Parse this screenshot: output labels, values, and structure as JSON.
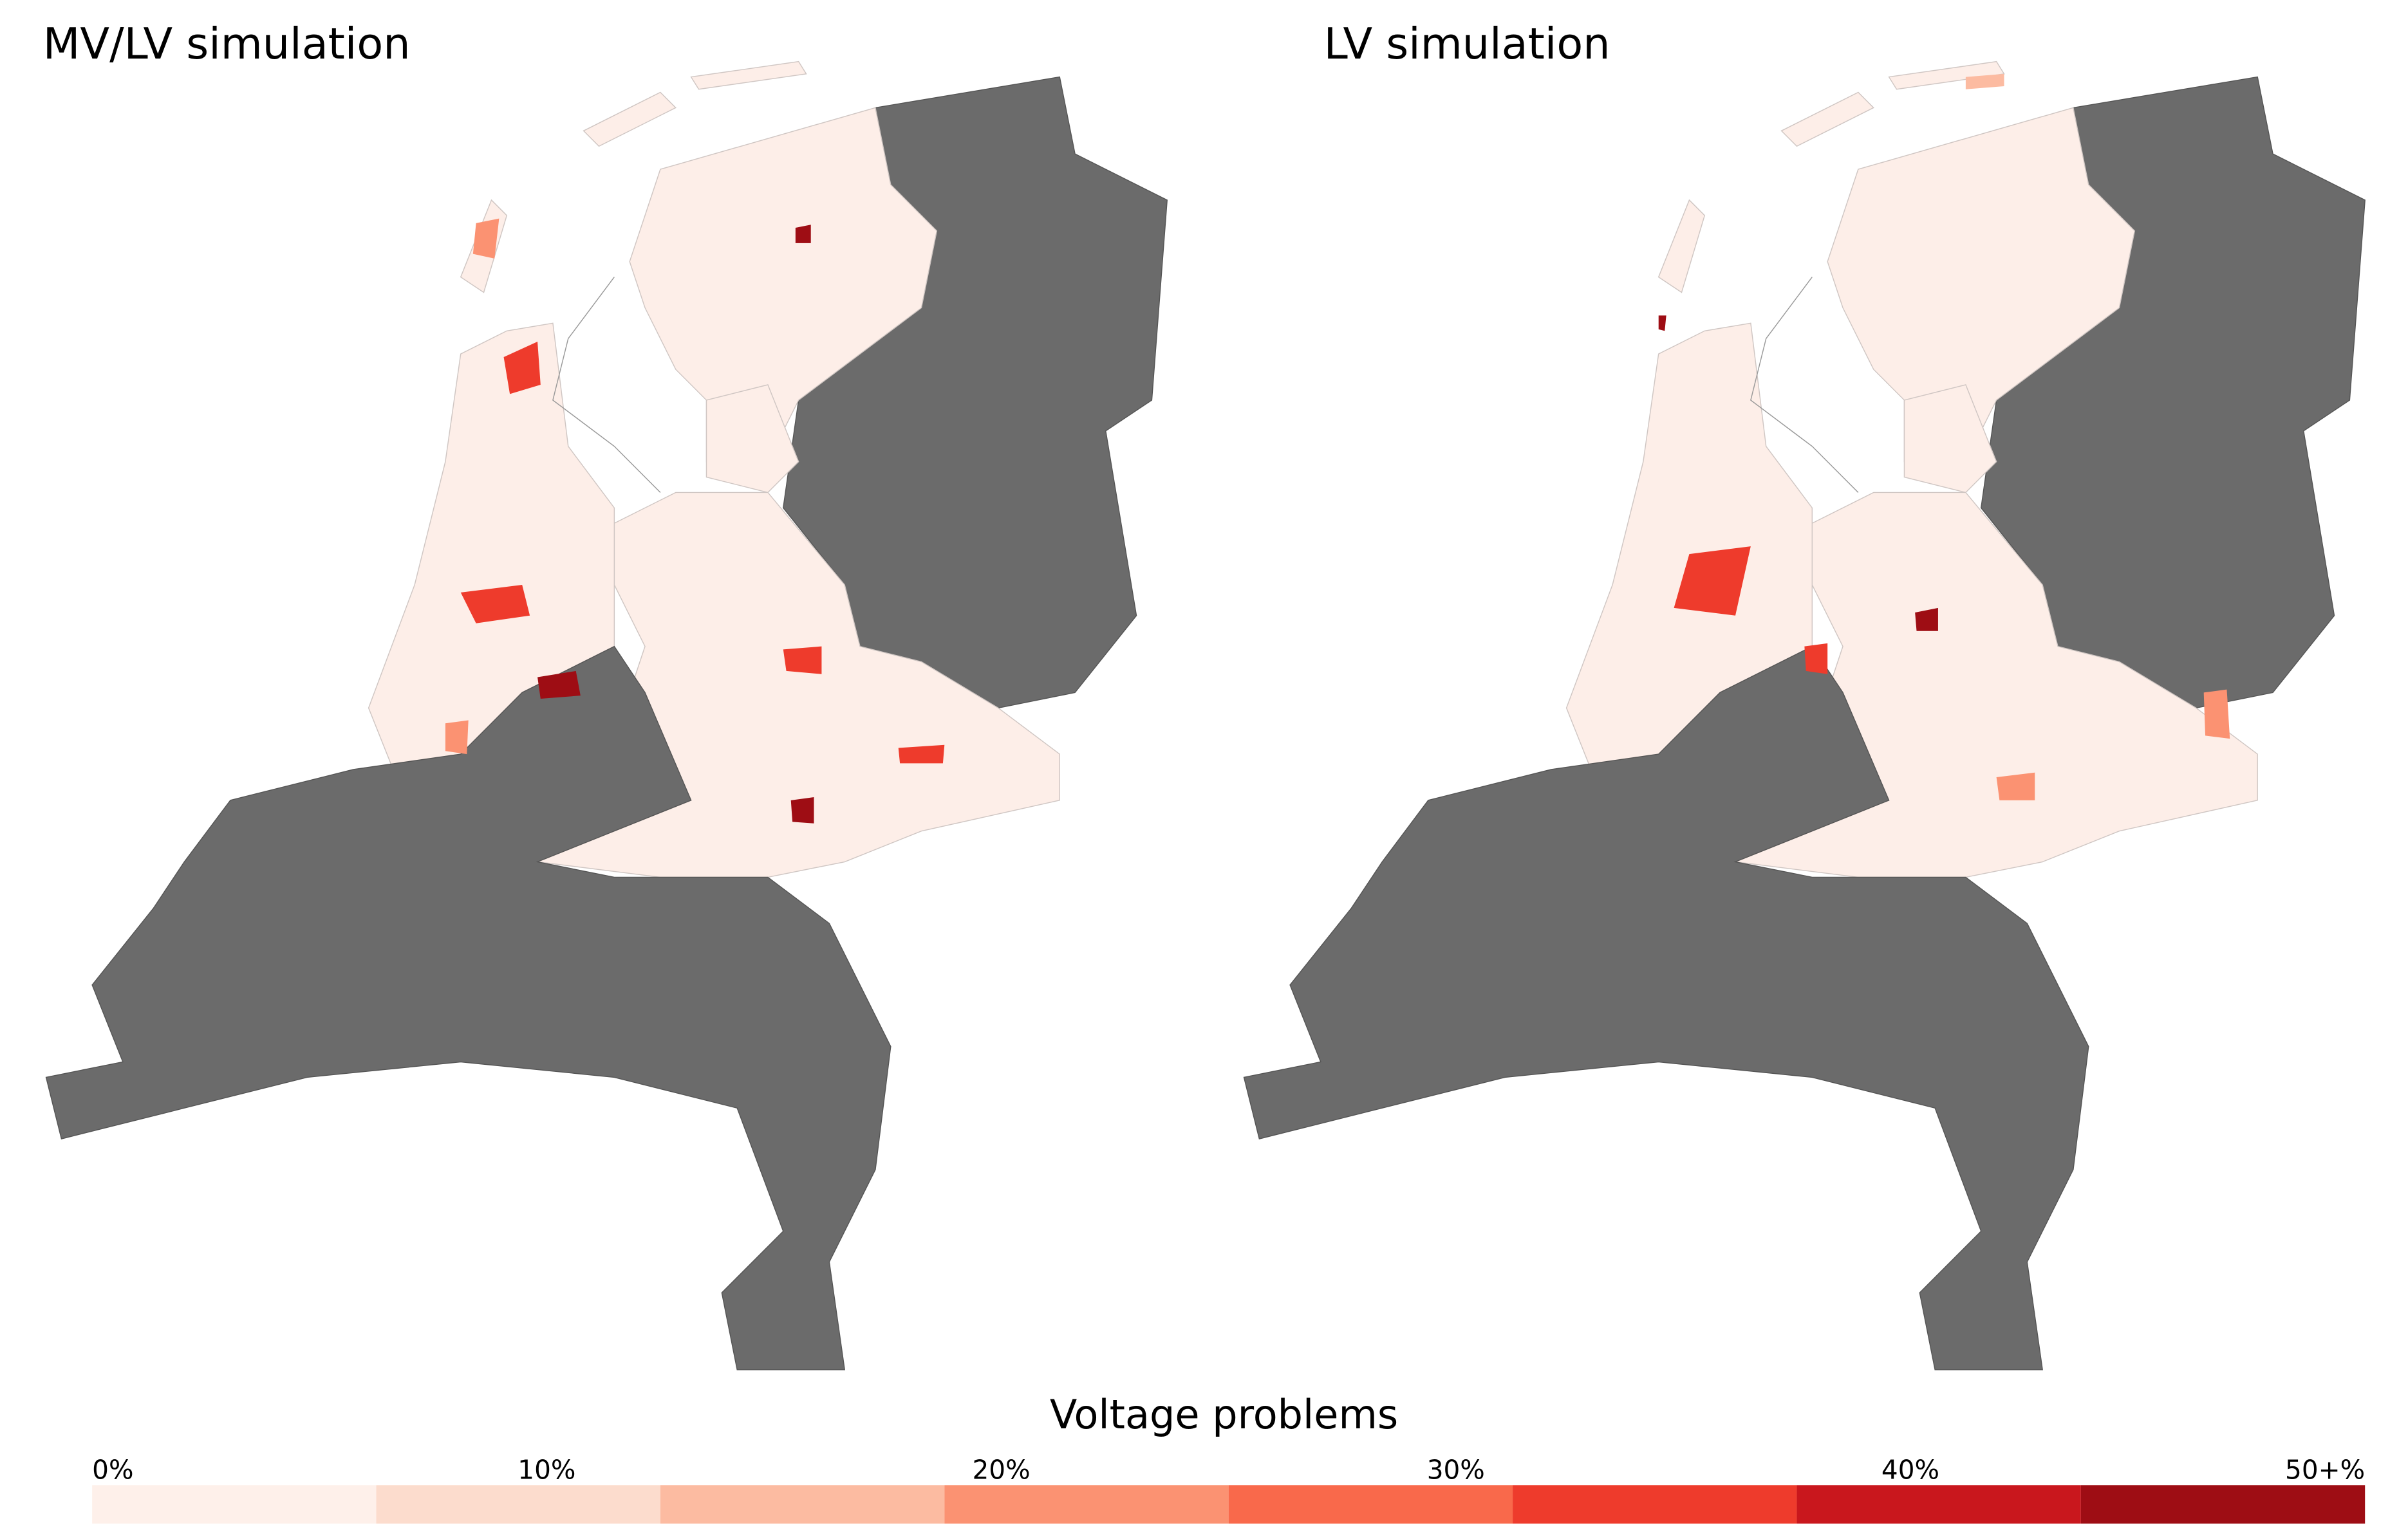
{
  "maps": [
    {
      "title": "MV/LV simulation"
    },
    {
      "title": "LV simulation"
    }
  ],
  "legend": {
    "title": "Voltage problems",
    "labels": [
      "0%",
      "10%",
      "20%",
      "30%",
      "40%",
      "50+%"
    ],
    "colors": [
      "#fef0ea",
      "#fcdccd",
      "#fcbba1",
      "#fb9272",
      "#f9694b",
      "#ee3b2c",
      "#c9171d",
      "#9e0d14"
    ]
  }
}
